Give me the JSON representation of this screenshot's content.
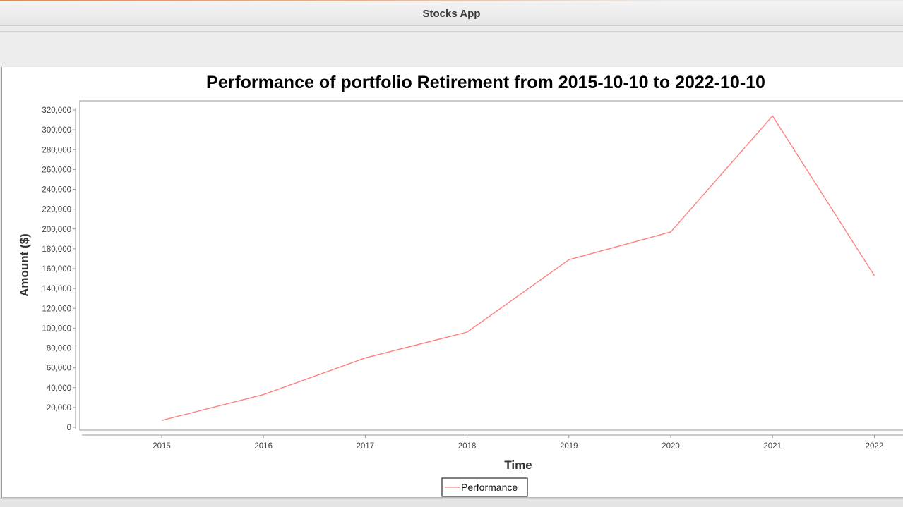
{
  "app": {
    "window_title": "Stocks App"
  },
  "colors": {
    "series_line": "#ff8080",
    "plot_border": "#999999",
    "axis_text": "#444444"
  },
  "chart_data": {
    "type": "line",
    "title": "Performance of portfolio Retirement from 2015-10-10 to 2022-10-10",
    "xlabel": "Time",
    "ylabel": "Amount ($)",
    "categories": [
      "2015",
      "2016",
      "2017",
      "2018",
      "2019",
      "2020",
      "2021",
      "2022"
    ],
    "yticks": [
      "0",
      "20,000",
      "40,000",
      "60,000",
      "80,000",
      "100,000",
      "120,000",
      "140,000",
      "160,000",
      "180,000",
      "200,000",
      "220,000",
      "240,000",
      "260,000",
      "280,000",
      "300,000",
      "320,000"
    ],
    "ylim": [
      0,
      320000
    ],
    "grid": false,
    "legend_position": "bottom",
    "series": [
      {
        "name": "Performance",
        "values": [
          7000,
          33000,
          70000,
          96000,
          169000,
          197000,
          314000,
          153000
        ]
      }
    ]
  }
}
